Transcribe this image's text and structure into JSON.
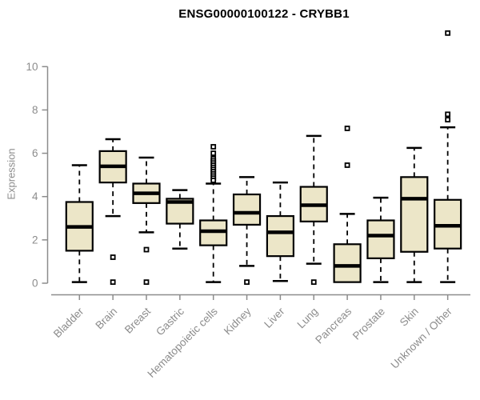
{
  "title": "ENSG00000100122 - CRYBB1",
  "colors": {
    "box_fill": "#ece6c8",
    "box_stroke": "#000000",
    "median": "#000000",
    "outlier_fill": "#ffffff",
    "axis": "#8c8c8c",
    "title": "#000000"
  },
  "chart_data": {
    "type": "boxplot",
    "title": "ENSG00000100122 - CRYBB1",
    "xlabel": "",
    "ylabel": "Expression",
    "yticks": [
      0,
      2,
      4,
      6,
      8,
      10
    ],
    "ylim": [
      0,
      11.8
    ],
    "grid": false,
    "legend": "none",
    "categories": [
      "Bladder",
      "Brain",
      "Breast",
      "Gastric",
      "Hematopoietic cells",
      "Kidney",
      "Liver",
      "Lung",
      "Pancreas",
      "Prostate",
      "Skin",
      "Unknown / Other"
    ],
    "series": [
      {
        "name": "Bladder",
        "whisker_low": 0.05,
        "q1": 1.5,
        "median": 2.6,
        "q3": 3.75,
        "whisker_high": 5.45,
        "outliers": []
      },
      {
        "name": "Brain",
        "whisker_low": 3.1,
        "q1": 4.65,
        "median": 5.4,
        "q3": 6.1,
        "whisker_high": 6.65,
        "outliers": [
          1.2,
          0.05
        ]
      },
      {
        "name": "Breast",
        "whisker_low": 2.35,
        "q1": 3.7,
        "median": 4.15,
        "q3": 4.6,
        "whisker_high": 5.8,
        "outliers": [
          1.55,
          0.05
        ]
      },
      {
        "name": "Gastric",
        "whisker_low": 1.6,
        "q1": 2.75,
        "median": 3.75,
        "q3": 3.9,
        "whisker_high": 4.3,
        "outliers": []
      },
      {
        "name": "Hematopoietic cells",
        "whisker_low": 0.05,
        "q1": 1.75,
        "median": 2.4,
        "q3": 2.9,
        "whisker_high": 4.6,
        "outliers": [
          6.3,
          6.0,
          5.75,
          5.65,
          5.55,
          5.45,
          5.35,
          5.25,
          5.15,
          5.05,
          4.95,
          4.85,
          4.75
        ]
      },
      {
        "name": "Kidney",
        "whisker_low": 0.8,
        "q1": 2.7,
        "median": 3.25,
        "q3": 4.1,
        "whisker_high": 4.9,
        "outliers": [
          0.05
        ]
      },
      {
        "name": "Liver",
        "whisker_low": 0.1,
        "q1": 1.25,
        "median": 2.35,
        "q3": 3.1,
        "whisker_high": 4.65,
        "outliers": []
      },
      {
        "name": "Lung",
        "whisker_low": 0.9,
        "q1": 2.85,
        "median": 3.6,
        "q3": 4.45,
        "whisker_high": 6.8,
        "outliers": [
          0.05
        ]
      },
      {
        "name": "Pancreas",
        "whisker_low": 0.05,
        "q1": 0.05,
        "median": 0.8,
        "q3": 1.8,
        "whisker_high": 3.2,
        "outliers": [
          5.45,
          7.15
        ]
      },
      {
        "name": "Prostate",
        "whisker_low": 0.05,
        "q1": 1.15,
        "median": 2.2,
        "q3": 2.9,
        "whisker_high": 3.95,
        "outliers": []
      },
      {
        "name": "Skin",
        "whisker_low": 0.05,
        "q1": 1.45,
        "median": 3.9,
        "q3": 4.9,
        "whisker_high": 6.25,
        "outliers": []
      },
      {
        "name": "Unknown / Other",
        "whisker_low": 0.05,
        "q1": 1.6,
        "median": 2.65,
        "q3": 3.85,
        "whisker_high": 7.2,
        "outliers": [
          7.55,
          7.8,
          11.55
        ]
      }
    ]
  }
}
